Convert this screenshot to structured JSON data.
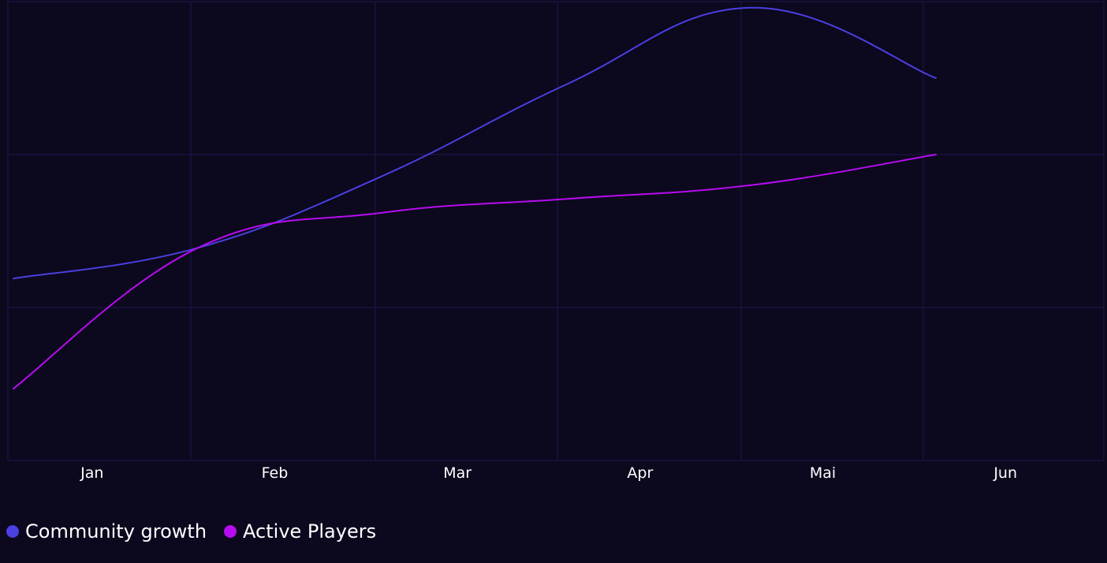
{
  "colors": {
    "background": "#0c081e",
    "grid": "#1b1646",
    "community": "#4a3fe0",
    "players": "#b60cf0",
    "text": "#ffffff"
  },
  "chart_data": {
    "type": "line",
    "categories": [
      "Jan",
      "Feb",
      "Mar",
      "Apr",
      "Mai",
      "Jun"
    ],
    "ylim": [
      0,
      3
    ],
    "grid": true,
    "legend": "bottom-left",
    "series": [
      {
        "name": "Community growth",
        "color_key": "community",
        "values": [
          1.19,
          1.39,
          1.86,
          2.46,
          2.96,
          2.5
        ],
        "legend_label": "Community growth"
      },
      {
        "name": "Active Players",
        "color_key": "players",
        "values": [
          0.47,
          1.39,
          1.62,
          1.71,
          1.8,
          2.0
        ],
        "legend_label": "Active Players"
      }
    ]
  }
}
